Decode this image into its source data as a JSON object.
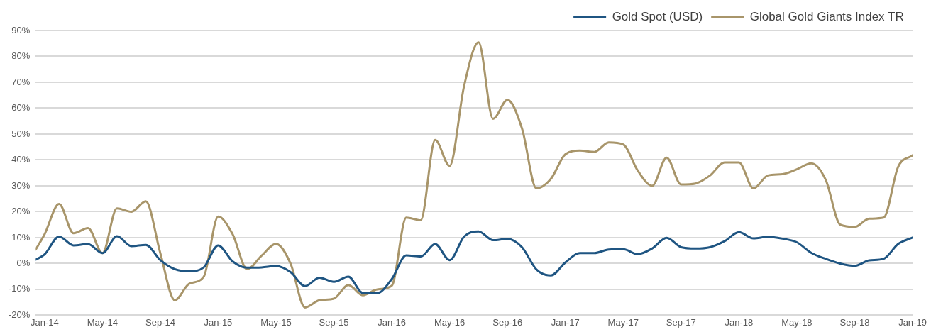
{
  "chart_data": {
    "type": "line",
    "x": [
      "2013-12-13",
      "2014-01",
      "2014-02",
      "2014-03",
      "2014-04",
      "2014-05",
      "2014-06",
      "2014-07",
      "2014-08",
      "2014-09",
      "2014-10",
      "2014-11",
      "2014-12",
      "2015-01",
      "2015-02",
      "2015-03",
      "2015-04",
      "2015-05",
      "2015-06",
      "2015-07",
      "2015-08",
      "2015-09",
      "2015-10",
      "2015-11",
      "2015-12",
      "2016-01",
      "2016-02",
      "2016-03",
      "2016-04",
      "2016-05",
      "2016-06",
      "2016-07",
      "2016-08",
      "2016-09",
      "2016-10",
      "2016-11",
      "2016-12",
      "2017-01",
      "2017-02",
      "2017-03",
      "2017-04",
      "2017-05",
      "2017-06",
      "2017-07",
      "2017-08",
      "2017-09",
      "2017-10",
      "2017-11",
      "2017-12",
      "2018-01",
      "2018-02",
      "2018-03",
      "2018-04",
      "2018-05",
      "2018-06",
      "2018-07",
      "2018-08",
      "2018-09",
      "2018-10",
      "2018-11",
      "2018-12",
      "2019-01"
    ],
    "series": [
      {
        "name": "Gold Spot (USD)",
        "color": "#1f5582",
        "values": [
          1.5,
          3.5,
          10.4,
          7,
          7.5,
          4,
          10.5,
          6.7,
          7.2,
          1.3,
          -2.2,
          -3,
          -1.5,
          7,
          0.8,
          -1.6,
          -1.5,
          -1,
          -3.3,
          -8.7,
          -5.5,
          -7.1,
          -5.1,
          -11.4,
          -11.4,
          -6,
          3.1,
          2.7,
          7.5,
          1.3,
          10.4,
          12.4,
          9,
          9.5,
          6.3,
          -2.3,
          -4.6,
          0.4,
          4,
          4,
          5.4,
          5.5,
          3.6,
          5.8,
          9.9,
          6.3,
          5.8,
          6.3,
          8.6,
          12.1,
          9.7,
          10.3,
          9.6,
          8.2,
          4.1,
          1.8,
          0,
          -0.9,
          1.2,
          1.8,
          7.5,
          10
        ]
      },
      {
        "name": "Global Gold Giants Index TR",
        "color": "#a8956a",
        "values": [
          5.4,
          11.3,
          23,
          11.7,
          13.7,
          4,
          21.3,
          20,
          24,
          4,
          -14.2,
          -7.8,
          -5.1,
          18.1,
          11.3,
          -2.2,
          3,
          7.6,
          0,
          -17,
          -14.2,
          -13.6,
          -8.3,
          -12.3,
          -10,
          -8.6,
          17.7,
          16.7,
          47.7,
          37.7,
          68.6,
          85.4,
          55.9,
          63.2,
          52.2,
          29,
          32.7,
          42.2,
          43.6,
          43.1,
          46.8,
          46,
          35.9,
          30,
          40.9,
          30.5,
          30.9,
          34,
          39,
          39,
          29,
          34,
          34.5,
          36.4,
          38.7,
          32.3,
          15,
          14.1,
          17.3,
          17.7,
          37.3,
          41.8
        ]
      }
    ],
    "xlim": [
      "2013-12-13",
      "2019-01"
    ],
    "xticks": [
      {
        "value": "2014-01",
        "label": "Jan-14"
      },
      {
        "value": "2014-05",
        "label": "May-14"
      },
      {
        "value": "2014-09",
        "label": "Sep-14"
      },
      {
        "value": "2015-01",
        "label": "Jan-15"
      },
      {
        "value": "2015-05",
        "label": "May-15"
      },
      {
        "value": "2015-09",
        "label": "Sep-15"
      },
      {
        "value": "2016-01",
        "label": "Jan-16"
      },
      {
        "value": "2016-05",
        "label": "May-16"
      },
      {
        "value": "2016-09",
        "label": "Sep-16"
      },
      {
        "value": "2017-01",
        "label": "Jan-17"
      },
      {
        "value": "2017-05",
        "label": "May-17"
      },
      {
        "value": "2017-09",
        "label": "Sep-17"
      },
      {
        "value": "2018-01",
        "label": "Jan-18"
      },
      {
        "value": "2018-05",
        "label": "May-18"
      },
      {
        "value": "2018-09",
        "label": "Sep-18"
      },
      {
        "value": "2019-01",
        "label": "Jan-19"
      }
    ],
    "ylim": [
      -20,
      90
    ],
    "yticks": [
      {
        "value": -20,
        "label": "-20%"
      },
      {
        "value": -10,
        "label": "-10%"
      },
      {
        "value": 0,
        "label": "0%"
      },
      {
        "value": 10,
        "label": "10%"
      },
      {
        "value": 20,
        "label": "20%"
      },
      {
        "value": 30,
        "label": "30%"
      },
      {
        "value": 40,
        "label": "40%"
      },
      {
        "value": 50,
        "label": "50%"
      },
      {
        "value": 60,
        "label": "60%"
      },
      {
        "value": 70,
        "label": "70%"
      },
      {
        "value": 80,
        "label": "80%"
      },
      {
        "value": 90,
        "label": "90%"
      }
    ],
    "grid": "y",
    "legend": "top right",
    "marker": "none",
    "line_style": "solid"
  }
}
